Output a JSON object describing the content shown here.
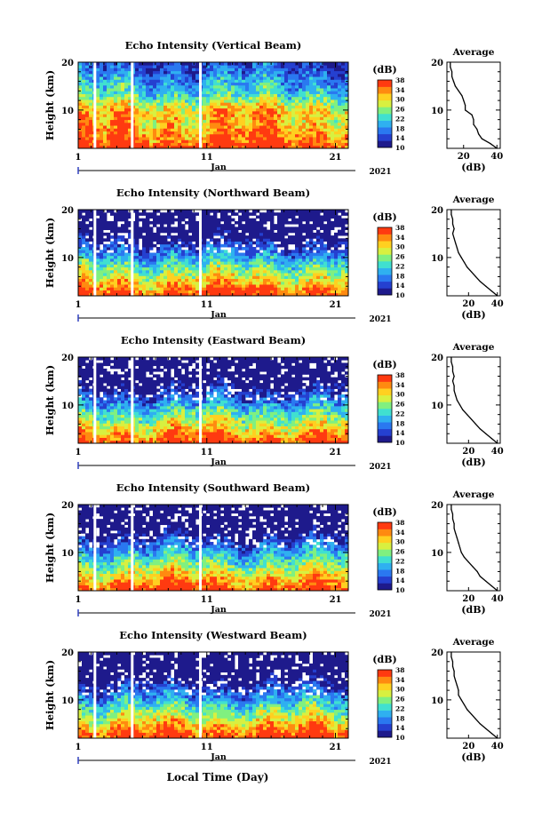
{
  "colorbar": {
    "unit_label": "(dB)",
    "ticks": [
      "10",
      "14",
      "18",
      "22",
      "26",
      "30",
      "34",
      "38"
    ]
  },
  "colors": {
    "scale": [
      "#1e1a8c",
      "#2540d0",
      "#2a78f0",
      "#2fb0f0",
      "#40e0d0",
      "#80f080",
      "#d8f040",
      "#ffd020",
      "#ff8a10",
      "#ff3a10"
    ]
  },
  "shared_axis": {
    "x_tick_labels": [
      "1",
      "11",
      "21"
    ],
    "month_label": "Jan",
    "year_label": "2021",
    "y_tick_labels": [
      "10",
      "20"
    ],
    "y_label": "Height (km)",
    "avg_title": "Average",
    "avg_xlabel": "(dB)"
  },
  "xlabel": "Local Time (Day)",
  "chart_data": [
    {
      "type": "heatmap",
      "title": "Echo Intensity (Vertical Beam)",
      "ylabel": "Height (km)",
      "xlabel": "Local Time (Day)",
      "x_range_day": [
        1,
        22
      ],
      "ylim_km": [
        2,
        20
      ],
      "color_range_db": [
        10,
        38
      ],
      "data_gaps_day": [
        2.3,
        5.2,
        10.5
      ],
      "average_profile": {
        "title": "Average",
        "xlabel": "(dB)",
        "xticks": [
          "20",
          "40"
        ],
        "xlim": [
          10,
          42
        ],
        "heights_km": [
          2,
          3,
          4,
          5,
          6,
          7,
          8,
          9,
          10,
          11,
          12,
          13,
          14,
          15,
          16,
          17,
          18,
          19,
          20
        ],
        "values_db": [
          40,
          36,
          31,
          29,
          28,
          26,
          26,
          25,
          21,
          21,
          20,
          19,
          17,
          15,
          14,
          13,
          13,
          12,
          12
        ]
      }
    },
    {
      "type": "heatmap",
      "title": "Echo Intensity (Northward Beam)",
      "ylabel": "Height (km)",
      "x_range_day": [
        1,
        22
      ],
      "ylim_km": [
        2,
        20
      ],
      "color_range_db": [
        10,
        38
      ],
      "data_gaps_day": [
        2.3,
        5.2,
        10.5
      ],
      "average_profile": {
        "title": "Average",
        "xlabel": "(dB)",
        "xticks": [
          "20",
          "40"
        ],
        "xlim": [
          5,
          42
        ],
        "heights_km": [
          2,
          3,
          4,
          5,
          6,
          7,
          8,
          9,
          10,
          11,
          12,
          13,
          14,
          15,
          16,
          17,
          18,
          19,
          20
        ],
        "values_db": [
          40,
          36,
          32,
          28,
          25,
          22,
          19,
          17,
          15,
          13,
          12,
          11,
          10,
          9,
          10,
          9,
          9,
          8,
          8
        ]
      }
    },
    {
      "type": "heatmap",
      "title": "Echo Intensity (Eastward Beam)",
      "ylabel": "Height (km)",
      "x_range_day": [
        1,
        22
      ],
      "ylim_km": [
        2,
        20
      ],
      "color_range_db": [
        10,
        38
      ],
      "data_gaps_day": [
        2.3,
        5.2,
        10.5
      ],
      "average_profile": {
        "title": "Average",
        "xlabel": "(dB)",
        "xticks": [
          "20",
          "40"
        ],
        "xlim": [
          5,
          42
        ],
        "heights_km": [
          2,
          3,
          4,
          5,
          6,
          7,
          8,
          9,
          10,
          11,
          12,
          13,
          14,
          15,
          16,
          17,
          18,
          19,
          20
        ],
        "values_db": [
          40,
          36,
          32,
          28,
          25,
          22,
          19,
          16,
          14,
          12,
          11,
          10,
          10,
          9,
          10,
          9,
          9,
          8,
          8
        ]
      }
    },
    {
      "type": "heatmap",
      "title": "Echo Intensity (Southward Beam)",
      "ylabel": "Height (km)",
      "x_range_day": [
        1,
        22
      ],
      "ylim_km": [
        2,
        20
      ],
      "color_range_db": [
        10,
        38
      ],
      "data_gaps_day": [
        2.3,
        5.2,
        10.5
      ],
      "average_profile": {
        "title": "Average",
        "xlabel": "(dB)",
        "xticks": [
          "20",
          "40"
        ],
        "xlim": [
          5,
          42
        ],
        "heights_km": [
          2,
          3,
          4,
          5,
          6,
          7,
          8,
          9,
          10,
          11,
          12,
          13,
          14,
          15,
          16,
          17,
          18,
          19,
          20
        ],
        "values_db": [
          40,
          36,
          32,
          28,
          26,
          23,
          20,
          17,
          15,
          14,
          13,
          12,
          11,
          10,
          10,
          9,
          9,
          8,
          8
        ]
      }
    },
    {
      "type": "heatmap",
      "title": "Echo Intensity (Westward Beam)",
      "ylabel": "Height (km)",
      "x_range_day": [
        1,
        22
      ],
      "ylim_km": [
        2,
        20
      ],
      "color_range_db": [
        10,
        38
      ],
      "data_gaps_day": [
        2.3,
        5.2,
        10.5
      ],
      "average_profile": {
        "title": "Average",
        "xlabel": "(dB)",
        "xticks": [
          "20",
          "40"
        ],
        "xlim": [
          5,
          42
        ],
        "heights_km": [
          2,
          3,
          4,
          5,
          6,
          7,
          8,
          9,
          10,
          11,
          12,
          13,
          14,
          15,
          16,
          17,
          18,
          19,
          20
        ],
        "values_db": [
          40,
          36,
          32,
          28,
          25,
          22,
          19,
          17,
          15,
          13,
          13,
          12,
          11,
          10,
          10,
          9,
          9,
          8,
          8
        ]
      }
    }
  ]
}
